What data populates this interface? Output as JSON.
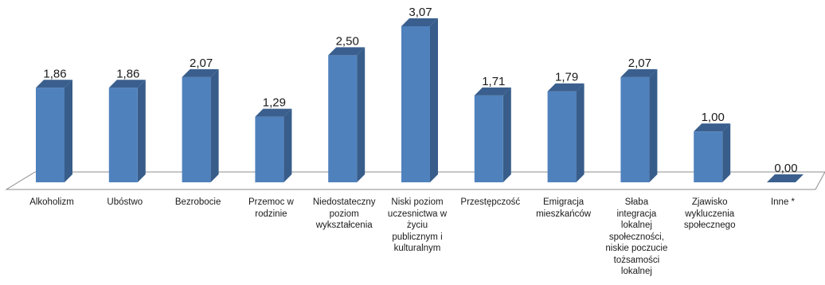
{
  "chart_data": {
    "type": "bar",
    "style": "3d-column",
    "categories": [
      "Alkoholizm",
      "Ubóstwo",
      "Bezrobocie",
      "Przemoc w rodzinie",
      "Niedostateczny poziom wykształcenia",
      "Niski poziom uczesnictwa w życiu publicznym i kulturalnym",
      "Przestępczość",
      "Emigracja mieszkańców",
      "Słaba integracja lokalnej społeczności, niskie poczucie tożsamości lokalnej",
      "Zjawisko wykluczenia społecznego",
      "Inne *"
    ],
    "category_lines": [
      [
        "Alkoholizm"
      ],
      [
        "Ubóstwo"
      ],
      [
        "Bezrobocie"
      ],
      [
        "Przemoc w",
        "rodzinie"
      ],
      [
        "Niedostateczny",
        "poziom",
        "wykształcenia"
      ],
      [
        "Niski poziom",
        "uczesnictwa w",
        "życiu",
        "publicznym i",
        "kulturalnym"
      ],
      [
        "Przestępczość"
      ],
      [
        "Emigracja",
        "mieszkańców"
      ],
      [
        "Słaba",
        "integracja",
        "lokalnej",
        "społeczności,",
        "niskie poczucie",
        "tożsamości",
        "lokalnej"
      ],
      [
        "Zjawisko",
        "wykluczenia",
        "społecznego"
      ],
      [
        "Inne *"
      ]
    ],
    "values": [
      1.86,
      1.86,
      2.07,
      1.29,
      2.5,
      3.07,
      1.71,
      1.79,
      2.07,
      1.0,
      0.0
    ],
    "value_labels": [
      "1,86",
      "1,86",
      "2,07",
      "1,29",
      "2,50",
      "3,07",
      "1,71",
      "1,79",
      "2,07",
      "1,00",
      "0,00"
    ],
    "ylim": [
      0,
      3.07
    ],
    "grid": false,
    "legend": "none",
    "colors": {
      "front": "#4f81bd",
      "side": "#385d8a",
      "top": "#3a5f8e",
      "floor_edge": "#8c8c8c"
    }
  }
}
